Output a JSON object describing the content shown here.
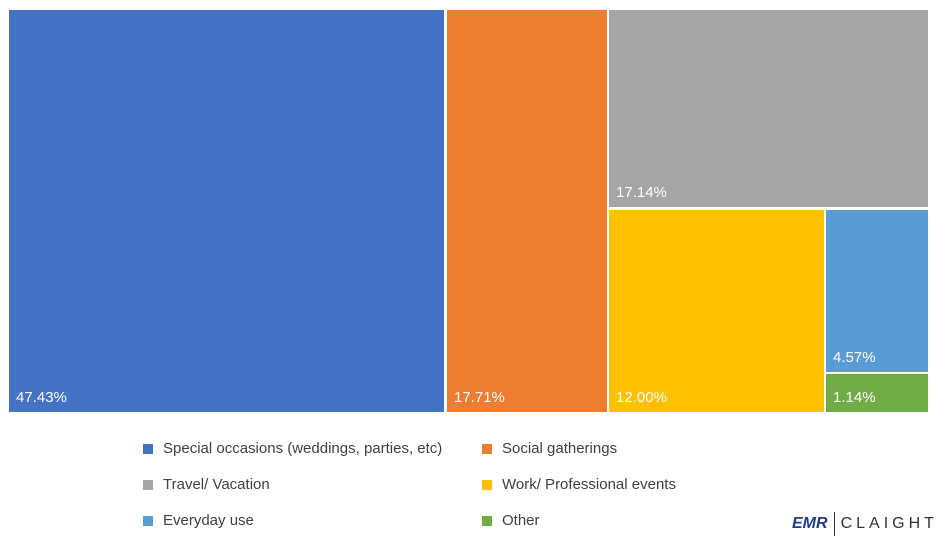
{
  "chart_data": {
    "type": "treemap",
    "title": "",
    "series": [
      {
        "name": "Special occasions (weddings, parties, etc)",
        "value": 47.43,
        "label": "47.43%",
        "color": "#4472C4"
      },
      {
        "name": "Social gatherings",
        "value": 17.71,
        "label": "17.71%",
        "color": "#ED7D31"
      },
      {
        "name": "Travel/ Vacation",
        "value": 17.14,
        "label": "17.14%",
        "color": "#A5A5A5"
      },
      {
        "name": "Work/ Professional events",
        "value": 12.0,
        "label": "12.00%",
        "color": "#FFC000"
      },
      {
        "name": "Everyday use",
        "value": 4.57,
        "label": "4.57%",
        "color": "#5B9BD5"
      },
      {
        "name": "Other",
        "value": 1.14,
        "label": "1.14%",
        "color": "#70AD47"
      }
    ],
    "legend_position": "bottom"
  },
  "logo": {
    "left": "EMR",
    "right": "CLAIGHT"
  }
}
